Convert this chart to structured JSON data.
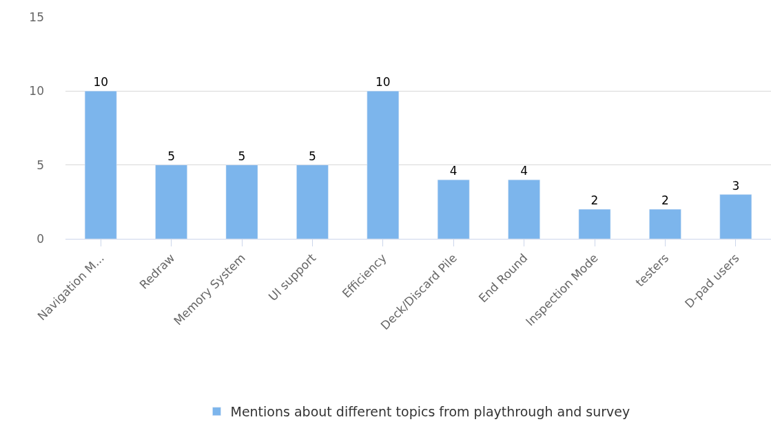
{
  "chart_data": {
    "type": "bar",
    "categories": [
      "Navigation M...",
      "Redraw",
      "Memory System",
      "UI support",
      "Efficiency",
      "Deck/Discard Pile",
      "End Round",
      "Inspection Mode",
      "testers",
      "D-pad users"
    ],
    "series": [
      {
        "name": "Mentions about different topics from playthrough and survey",
        "color": "#7cb5ec",
        "values": [
          10,
          5,
          5,
          5,
          10,
          4,
          4,
          2,
          2,
          3
        ]
      }
    ],
    "ylim": [
      0,
      15
    ],
    "yticks": [
      0,
      5,
      10,
      15
    ],
    "grid": "y",
    "legend": "bottom",
    "data_labels": true
  }
}
